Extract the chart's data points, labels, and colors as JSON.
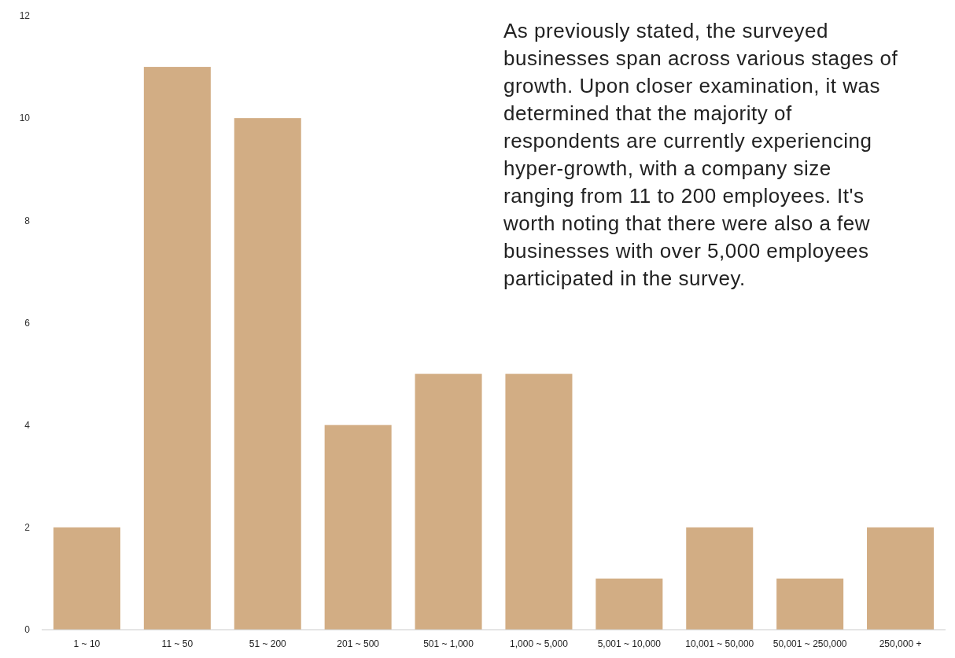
{
  "chart_data": {
    "type": "bar",
    "categories": [
      "1 ~ 10",
      "11 ~ 50",
      "51 ~ 200",
      "201 ~ 500",
      "501 ~ 1,000",
      "1,000 ~ 5,000",
      "5,001 ~ 10,000",
      "10,001 ~ 50,000",
      "50,001 ~ 250,000",
      "250,000 +"
    ],
    "values": [
      2,
      11,
      10,
      4,
      5,
      5,
      1,
      2,
      1,
      2
    ],
    "color": "#d2ad84",
    "ylim": [
      0,
      12
    ],
    "yticks": [
      0,
      2,
      4,
      6,
      8,
      10,
      12
    ],
    "grid": false,
    "annotations": [
      "As previously stated, the surveyed businesses span across various stages of growth. Upon closer examination, it was determined that the majority of respondents are currently experiencing hyper-growth, with a company size ranging from 11 to 200 employees. It's worth noting that there were also a few businesses with over 5,000 employees participated in the survey."
    ]
  }
}
